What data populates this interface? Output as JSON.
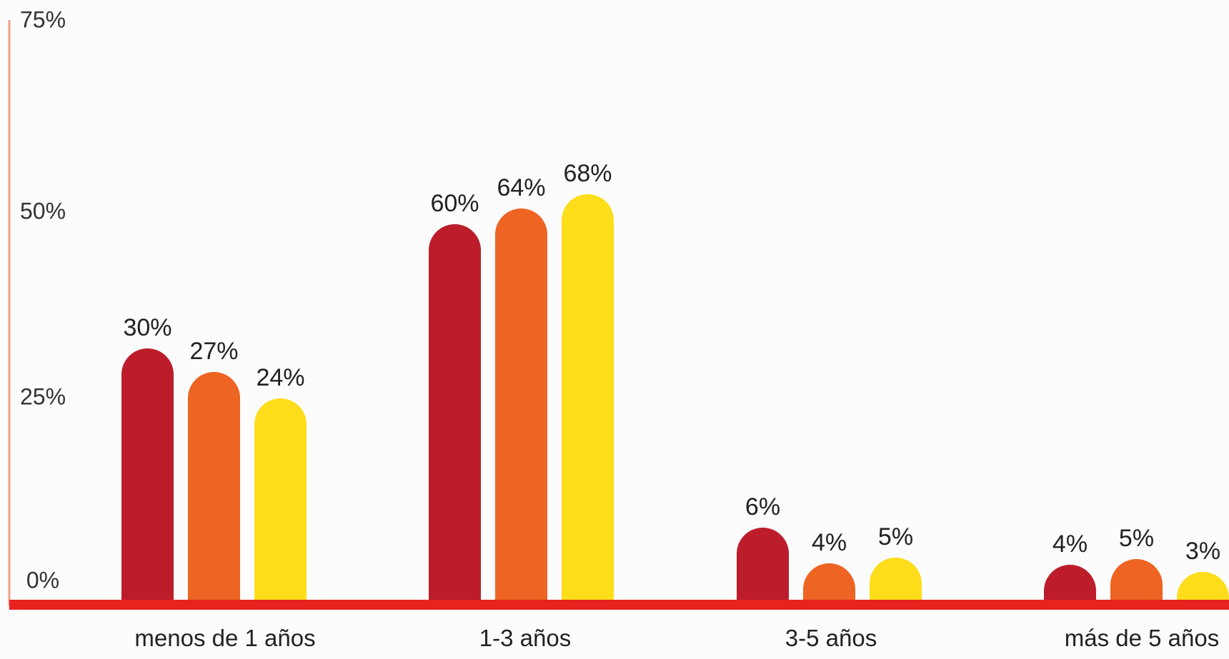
{
  "chart_data": {
    "type": "bar",
    "categories": [
      "menos de 1 años",
      "1-3 años",
      "3-5 años",
      "más de 5 años"
    ],
    "series": [
      {
        "values": [
          30,
          60,
          6,
          4
        ],
        "color": "#bd1d2b"
      },
      {
        "values": [
          27,
          64,
          4,
          5
        ],
        "color": "#ee6423"
      },
      {
        "values": [
          24,
          68,
          5,
          3
        ],
        "color": "#fedd1b"
      }
    ],
    "data_labels": [
      [
        "30%",
        "60%",
        "6%",
        "4%"
      ],
      [
        "27%",
        "64%",
        "4%",
        "5%"
      ],
      [
        "24%",
        "68%",
        "5%",
        "3%"
      ]
    ],
    "y_ticks": [
      {
        "value": 0,
        "label": "0%"
      },
      {
        "value": 25,
        "label": "25%"
      },
      {
        "value": 50,
        "label": "50%"
      },
      {
        "value": 75,
        "label": "75%"
      }
    ],
    "ylim": [
      0,
      75
    ],
    "grid": false,
    "legend": "none",
    "axis_colors": {
      "baseline": "#e8221f",
      "y_axis": "#f2a08e"
    }
  }
}
